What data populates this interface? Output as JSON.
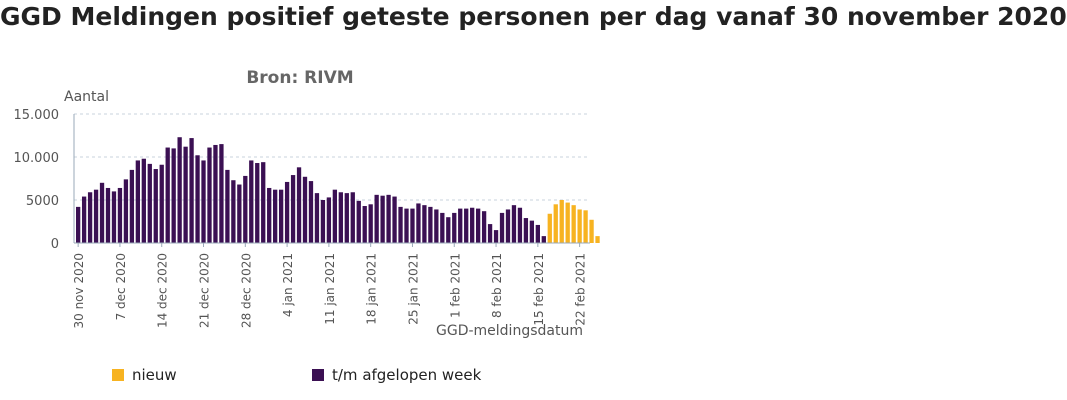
{
  "title": "GGD Meldingen positief geteste personen per dag vanaf 30 november 2020",
  "subtitle": "Bron: RIVM",
  "colors": {
    "old": "#3b1053",
    "new": "#f7b321",
    "axis": "#9aa9b8",
    "grid": "#c8d3de",
    "text": "#555555"
  },
  "legend": {
    "new_label": "nieuw",
    "old_label": "t/m afgelopen week"
  },
  "chart_data": {
    "type": "bar",
    "title": "GGD Meldingen positief geteste personen per dag vanaf 30 november 2020",
    "subtitle": "Bron: RIVM",
    "ylabel": "Aantal",
    "xlabel": "GGD-meldingsdatum",
    "ylim": [
      0,
      15000
    ],
    "yticks": [
      {
        "value": 0,
        "label": "0"
      },
      {
        "value": 5000,
        "label": "5000"
      },
      {
        "value": 10000,
        "label": "10.000"
      },
      {
        "value": 15000,
        "label": "15.000"
      }
    ],
    "xticks": [
      {
        "index": 0,
        "label": "30 nov 2020"
      },
      {
        "index": 7,
        "label": "7 dec 2020"
      },
      {
        "index": 14,
        "label": "14 dec 2020"
      },
      {
        "index": 21,
        "label": "21 dec 2020"
      },
      {
        "index": 28,
        "label": "28 dec 2020"
      },
      {
        "index": 35,
        "label": "4 jan 2021"
      },
      {
        "index": 42,
        "label": "11 jan 2021"
      },
      {
        "index": 49,
        "label": "18 jan 2021"
      },
      {
        "index": 56,
        "label": "25 jan 2021"
      },
      {
        "index": 63,
        "label": "1 feb 2021"
      },
      {
        "index": 70,
        "label": "8 feb 2021"
      },
      {
        "index": 77,
        "label": "15 feb 2021"
      },
      {
        "index": 84,
        "label": "22 feb 2021"
      }
    ],
    "grid": true,
    "legend_position": "bottom",
    "series": [
      {
        "name": "t/m afgelopen week",
        "start_date": "2020-11-30",
        "values": [
          4200,
          5400,
          5900,
          6200,
          7000,
          6400,
          6000,
          6400,
          7400,
          8500,
          9600,
          9800,
          9200,
          8600,
          9100,
          11100,
          11000,
          12300,
          11200,
          12200,
          10200,
          9600,
          11100,
          11400,
          11500,
          8500,
          7300,
          6800,
          7800,
          9600,
          9300,
          9400,
          6400,
          6200,
          6200,
          7100,
          7900,
          8800,
          7700,
          7200,
          5800,
          5000,
          5300,
          6200,
          5900,
          5800,
          5900,
          4900,
          4300,
          4500,
          5600,
          5500,
          5600,
          5400,
          4200,
          4000,
          4000,
          4600,
          4400,
          4200,
          3900,
          3500,
          3000,
          3500,
          4000,
          4000,
          4100,
          4000,
          3700,
          2200,
          1500,
          3500,
          3900,
          4400,
          4100,
          2900,
          2600,
          2100,
          800
        ]
      },
      {
        "name": "nieuw",
        "start_date": "2021-02-16",
        "values": [
          3400,
          4500,
          5000,
          4700,
          4400,
          3900,
          3800,
          2700,
          800
        ]
      }
    ]
  }
}
